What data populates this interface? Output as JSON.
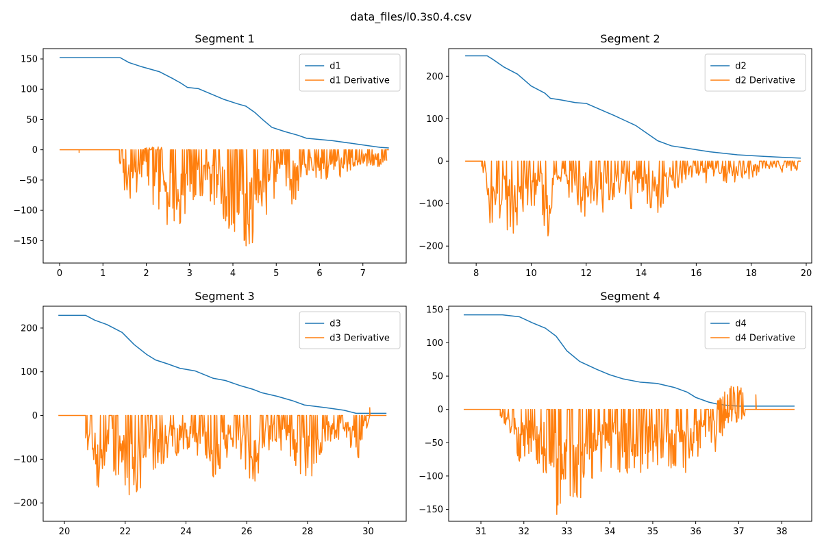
{
  "figure": {
    "suptitle": "data_files/l0.3s0.4.csv"
  },
  "colors": {
    "main": "#1f77b4",
    "derivative": "#ff7f0e",
    "axes": "#000000",
    "background": "#ffffff"
  },
  "chart_data": [
    {
      "type": "line",
      "title": "Segment 1",
      "xlim": [
        -0.38,
        8.0
      ],
      "ylim": [
        -187,
        167
      ],
      "xticks": [
        0,
        1,
        2,
        3,
        4,
        5,
        6,
        7
      ],
      "yticks": [
        -150,
        -100,
        -50,
        0,
        50,
        100,
        150
      ],
      "legend": "top-right",
      "series": [
        {
          "name": "d1",
          "role": "main",
          "points": [
            [
              0,
              152
            ],
            [
              1.4,
              152
            ],
            [
              1.6,
              144
            ],
            [
              1.9,
              137
            ],
            [
              2.3,
              129
            ],
            [
              2.6,
              118
            ],
            [
              2.8,
              110
            ],
            [
              2.95,
              103
            ],
            [
              3.2,
              101
            ],
            [
              3.5,
              92
            ],
            [
              3.8,
              83
            ],
            [
              4.1,
              76
            ],
            [
              4.3,
              72
            ],
            [
              4.5,
              62
            ],
            [
              4.7,
              49
            ],
            [
              4.9,
              37
            ],
            [
              5.2,
              30
            ],
            [
              5.5,
              24
            ],
            [
              5.7,
              19
            ],
            [
              6.0,
              17
            ],
            [
              6.3,
              15
            ],
            [
              6.7,
              11
            ],
            [
              7.1,
              7
            ],
            [
              7.4,
              4
            ],
            [
              7.6,
              3
            ]
          ]
        },
        {
          "name": "d1 Derivative",
          "role": "derivative",
          "active_range": [
            1.38,
            7.55
          ],
          "min_points": [
            [
              0.45,
              -5
            ],
            [
              1.45,
              -62
            ],
            [
              1.7,
              -97
            ],
            [
              2.0,
              -83
            ],
            [
              2.4,
              -123
            ],
            [
              2.7,
              -140
            ],
            [
              3.0,
              -95
            ],
            [
              3.3,
              -76
            ],
            [
              3.7,
              -118
            ],
            [
              4.05,
              -140
            ],
            [
              4.35,
              -172
            ],
            [
              4.55,
              -140
            ],
            [
              5.0,
              -80
            ],
            [
              5.35,
              -95
            ],
            [
              5.8,
              -50
            ],
            [
              6.4,
              -48
            ],
            [
              7.0,
              -30
            ],
            [
              7.5,
              -27
            ]
          ],
          "max_points": [
            [
              2.0,
              3
            ],
            [
              2.2,
              5
            ],
            [
              2.3,
              6
            ]
          ]
        }
      ]
    },
    {
      "type": "line",
      "title": "Segment 2",
      "xlim": [
        7.0,
        20.2
      ],
      "ylim": [
        -240,
        265
      ],
      "xticks": [
        8,
        10,
        12,
        14,
        16,
        18,
        20
      ],
      "yticks": [
        -200,
        -100,
        0,
        100,
        200
      ],
      "legend": "top-right",
      "series": [
        {
          "name": "d2",
          "role": "main",
          "points": [
            [
              7.6,
              248
            ],
            [
              8.4,
              248
            ],
            [
              8.6,
              240
            ],
            [
              9.0,
              222
            ],
            [
              9.5,
              205
            ],
            [
              10.0,
              177
            ],
            [
              10.5,
              160
            ],
            [
              10.7,
              148
            ],
            [
              11.1,
              144
            ],
            [
              11.6,
              138
            ],
            [
              12.0,
              136
            ],
            [
              12.5,
              122
            ],
            [
              13.0,
              108
            ],
            [
              13.4,
              96
            ],
            [
              13.8,
              84
            ],
            [
              14.2,
              66
            ],
            [
              14.6,
              48
            ],
            [
              15.1,
              36
            ],
            [
              15.7,
              30
            ],
            [
              16.5,
              22
            ],
            [
              17.5,
              15
            ],
            [
              18.5,
              11
            ],
            [
              19.8,
              7
            ]
          ]
        },
        {
          "name": "d2 Derivative",
          "role": "derivative",
          "active_range": [
            8.2,
            19.7
          ],
          "min_points": [
            [
              8.3,
              -60
            ],
            [
              8.5,
              -153
            ],
            [
              8.8,
              -145
            ],
            [
              9.0,
              -135
            ],
            [
              9.25,
              -213
            ],
            [
              9.7,
              -123
            ],
            [
              10.0,
              -107
            ],
            [
              10.35,
              -103
            ],
            [
              10.55,
              -218
            ],
            [
              11.0,
              -60
            ],
            [
              11.8,
              -128
            ],
            [
              12.4,
              -140
            ],
            [
              13.0,
              -90
            ],
            [
              13.4,
              -135
            ],
            [
              14.0,
              -95
            ],
            [
              14.6,
              -125
            ],
            [
              15.0,
              -80
            ],
            [
              15.8,
              -40
            ],
            [
              16.5,
              -55
            ],
            [
              17.5,
              -50
            ],
            [
              18.5,
              -30
            ],
            [
              19.5,
              -25
            ]
          ],
          "max_points": []
        }
      ]
    },
    {
      "type": "line",
      "title": "Segment 3",
      "xlim": [
        19.3,
        31.25
      ],
      "ylim": [
        -242,
        250
      ],
      "xticks": [
        20,
        22,
        24,
        26,
        28,
        30
      ],
      "yticks": [
        -200,
        -100,
        0,
        100,
        200
      ],
      "legend": "top-right",
      "series": [
        {
          "name": "d3",
          "role": "main",
          "points": [
            [
              19.8,
              229
            ],
            [
              20.7,
              229
            ],
            [
              21.0,
              218
            ],
            [
              21.4,
              208
            ],
            [
              21.9,
              190
            ],
            [
              22.3,
              162
            ],
            [
              22.7,
              140
            ],
            [
              23.0,
              127
            ],
            [
              23.4,
              118
            ],
            [
              23.8,
              108
            ],
            [
              24.3,
              102
            ],
            [
              24.9,
              85
            ],
            [
              25.3,
              80
            ],
            [
              25.8,
              68
            ],
            [
              26.2,
              60
            ],
            [
              26.5,
              52
            ],
            [
              27.0,
              44
            ],
            [
              27.5,
              34
            ],
            [
              27.9,
              24
            ],
            [
              28.6,
              18
            ],
            [
              29.2,
              12
            ],
            [
              29.6,
              5
            ],
            [
              30.6,
              5
            ]
          ]
        },
        {
          "name": "d3 Derivative",
          "role": "derivative",
          "active_range": [
            20.7,
            29.95
          ],
          "min_points": [
            [
              20.9,
              -80
            ],
            [
              21.1,
              -185
            ],
            [
              21.5,
              -125
            ],
            [
              21.9,
              -170
            ],
            [
              22.1,
              -198
            ],
            [
              22.25,
              -220
            ],
            [
              22.6,
              -160
            ],
            [
              23.0,
              -130
            ],
            [
              23.6,
              -95
            ],
            [
              24.2,
              -80
            ],
            [
              24.8,
              -150
            ],
            [
              25.4,
              -100
            ],
            [
              25.8,
              -110
            ],
            [
              26.3,
              -168
            ],
            [
              26.7,
              -80
            ],
            [
              27.4,
              -95
            ],
            [
              28.0,
              -165
            ],
            [
              28.6,
              -60
            ],
            [
              29.3,
              -55
            ],
            [
              29.65,
              -110
            ],
            [
              29.9,
              -30
            ]
          ],
          "max_points": [
            [
              30.05,
              18
            ]
          ]
        }
      ]
    },
    {
      "type": "line",
      "title": "Segment 4",
      "xlim": [
        30.25,
        38.7
      ],
      "ylim": [
        -168,
        155
      ],
      "xticks": [
        31,
        32,
        33,
        34,
        35,
        36,
        37,
        38
      ],
      "yticks": [
        -150,
        -100,
        -50,
        0,
        50,
        100,
        150
      ],
      "legend": "top-right",
      "series": [
        {
          "name": "d4",
          "role": "main",
          "points": [
            [
              30.6,
              142
            ],
            [
              31.5,
              142
            ],
            [
              31.9,
              139
            ],
            [
              32.2,
              130
            ],
            [
              32.5,
              122
            ],
            [
              32.75,
              110
            ],
            [
              33.0,
              88
            ],
            [
              33.3,
              72
            ],
            [
              33.7,
              60
            ],
            [
              34.0,
              52
            ],
            [
              34.3,
              46
            ],
            [
              34.7,
              41
            ],
            [
              35.1,
              39
            ],
            [
              35.5,
              33
            ],
            [
              35.8,
              26
            ],
            [
              36.0,
              18
            ],
            [
              36.3,
              11
            ],
            [
              36.5,
              8
            ],
            [
              36.75,
              6
            ],
            [
              37.0,
              5
            ],
            [
              38.3,
              5
            ]
          ]
        },
        {
          "name": "d4 Derivative",
          "role": "derivative",
          "active_range": [
            31.45,
            37.15
          ],
          "min_points": [
            [
              31.5,
              -18
            ],
            [
              31.75,
              -45
            ],
            [
              31.9,
              -80
            ],
            [
              32.2,
              -70
            ],
            [
              32.5,
              -100
            ],
            [
              32.75,
              -165
            ],
            [
              32.9,
              -145
            ],
            [
              33.1,
              -140
            ],
            [
              33.3,
              -152
            ],
            [
              33.6,
              -110
            ],
            [
              34.0,
              -90
            ],
            [
              34.4,
              -100
            ],
            [
              34.9,
              -95
            ],
            [
              35.2,
              -80
            ],
            [
              35.6,
              -95
            ],
            [
              35.8,
              -105
            ],
            [
              36.0,
              -90
            ],
            [
              36.2,
              -40
            ],
            [
              36.5,
              -70
            ],
            [
              36.7,
              -20
            ]
          ],
          "max_points": [
            [
              36.55,
              15
            ],
            [
              36.7,
              35
            ],
            [
              36.85,
              38
            ],
            [
              37.0,
              38
            ],
            [
              37.1,
              30
            ],
            [
              37.4,
              22
            ]
          ]
        }
      ]
    }
  ]
}
